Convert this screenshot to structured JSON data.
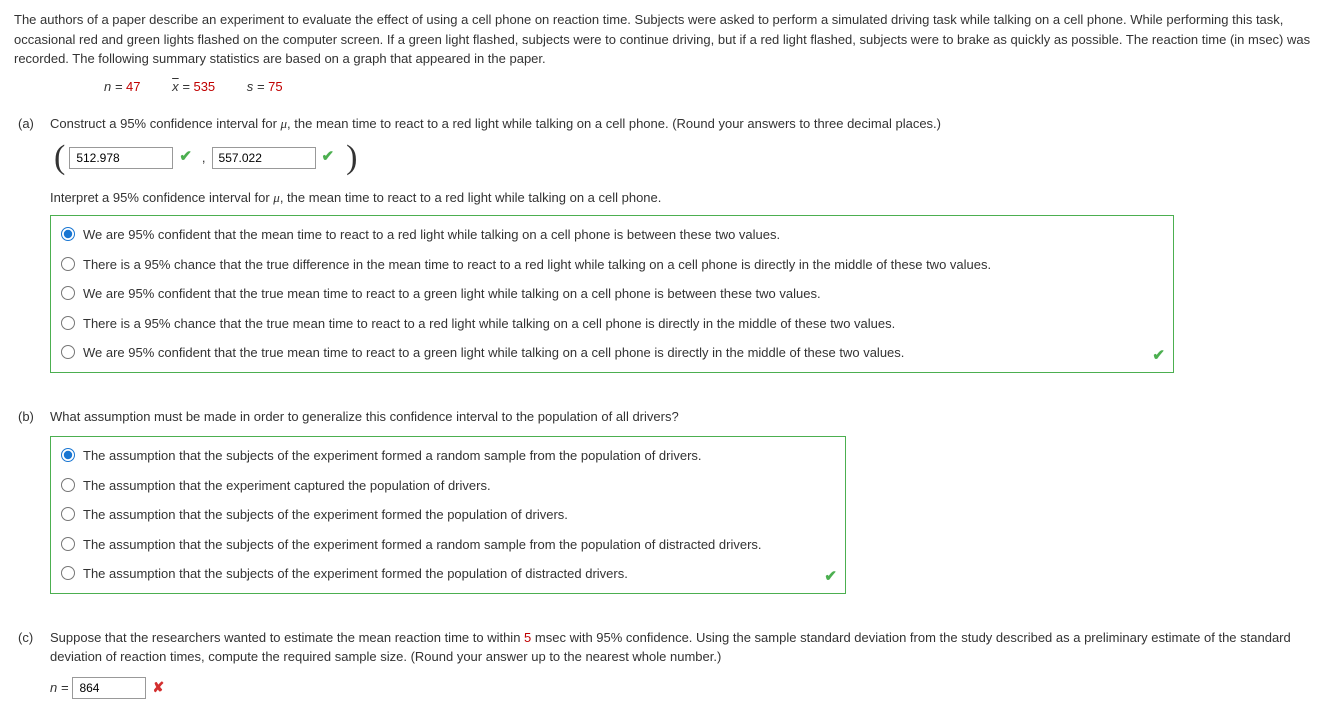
{
  "intro": "The authors of a paper describe an experiment to evaluate the effect of using a cell phone on reaction time. Subjects were asked to perform a simulated driving task while talking on a cell phone. While performing this task, occasional red and green lights flashed on the computer screen. If a green light flashed, subjects were to continue driving, but if a red light flashed, subjects were to brake as quickly as possible. The reaction time (in msec) was recorded. The following summary statistics are based on a graph that appeared in the paper.",
  "stats": {
    "n_label": "n = ",
    "n_val": "47",
    "x_label": "x",
    "x_eq": " = ",
    "x_val": "535",
    "s_label": "s = ",
    "s_val": "75"
  },
  "part_a": {
    "label": "(a)",
    "q1_pre": "Construct a 95% confidence interval for ",
    "q1_mu": "μ",
    "q1_post": ", the mean time to react to a red light while talking on a cell phone. (Round your answers to three decimal places.)",
    "lower": "512.978",
    "upper": "557.022",
    "interpret_pre": "Interpret a 95% confidence interval for ",
    "interpret_mu": "μ",
    "interpret_post": ", the mean time to react to a red light while talking on a cell phone.",
    "options": [
      "We are 95% confident that the mean time to react to a red light while talking on a cell phone is between these two values.",
      "There is a 95% chance that the true difference in the mean time to react to a red light while talking on a cell phone is directly in the middle of these two values.",
      "We are 95% confident that the true mean time to react to a green light while talking on a cell phone is between these two values.",
      "There is a 95% chance that the true mean time to react to a red light while talking on a cell phone is directly in the middle of these two values.",
      "We are 95% confident that the true mean time to react to a green light while talking on a cell phone is directly in the middle of these two values."
    ],
    "selected": 0
  },
  "part_b": {
    "label": "(b)",
    "q": "What assumption must be made in order to generalize this confidence interval to the population of all drivers?",
    "options": [
      "The assumption that the subjects of the experiment formed a random sample from the population of drivers.",
      "The assumption that the experiment captured the population of drivers.",
      "The assumption that the subjects of the experiment formed the population of drivers.",
      "The assumption that the subjects of the experiment formed a random sample from the population of distracted drivers.",
      "The assumption that the subjects of the experiment formed the population of distracted drivers."
    ],
    "selected": 0
  },
  "part_c": {
    "label": "(c)",
    "q_pre": "Suppose that the researchers wanted to estimate the mean reaction time to within ",
    "q_red": "5",
    "q_post": " msec with 95% confidence. Using the sample standard deviation from the study described as a preliminary estimate of the standard deviation of reaction times, compute the required sample size. (Round your answer up to the nearest whole number.)",
    "n_label": "n = ",
    "n_val": "864"
  }
}
